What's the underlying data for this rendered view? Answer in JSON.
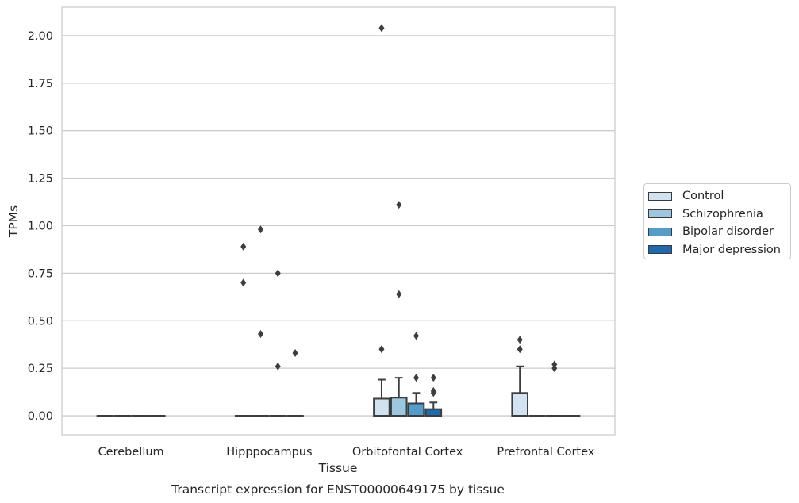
{
  "chart_data": {
    "type": "boxplot",
    "title": "",
    "caption": "Transcript expression for ENST00000649175 by tissue",
    "xlabel": "Tissue",
    "ylabel": "TPMs",
    "ylim": [
      -0.1,
      2.15
    ],
    "yticks": [
      "0.00",
      "0.25",
      "0.50",
      "0.75",
      "1.00",
      "1.25",
      "1.50",
      "1.75",
      "2.00"
    ],
    "grid": "horizontal",
    "legend_position": "right",
    "categories": [
      "Cerebellum",
      "Hipppocampus",
      "Orbitofontal Cortex",
      "Prefrontal Cortex"
    ],
    "series": [
      {
        "name": "Control",
        "color": "#d1e2f2",
        "boxes": [
          {
            "q1": 0,
            "median": 0,
            "q3": 0,
            "whisker_low": 0,
            "whisker_high": 0,
            "outliers": []
          },
          {
            "q1": 0,
            "median": 0,
            "q3": 0,
            "whisker_low": 0,
            "whisker_high": 0,
            "outliers": [
              0.89,
              0.7
            ]
          },
          {
            "q1": 0,
            "median": 0,
            "q3": 0.09,
            "whisker_low": 0,
            "whisker_high": 0.19,
            "outliers": [
              2.04,
              0.35
            ]
          },
          {
            "q1": 0,
            "median": 0,
            "q3": 0.12,
            "whisker_low": 0,
            "whisker_high": 0.26,
            "outliers": [
              0.4,
              0.35
            ]
          }
        ]
      },
      {
        "name": "Schizophrenia",
        "color": "#9ac8e0",
        "boxes": [
          {
            "q1": 0,
            "median": 0,
            "q3": 0,
            "whisker_low": 0,
            "whisker_high": 0,
            "outliers": []
          },
          {
            "q1": 0,
            "median": 0,
            "q3": 0,
            "whisker_low": 0,
            "whisker_high": 0,
            "outliers": [
              0.98,
              0.43
            ]
          },
          {
            "q1": 0,
            "median": 0,
            "q3": 0.095,
            "whisker_low": 0,
            "whisker_high": 0.2,
            "outliers": [
              1.11,
              0.64
            ]
          },
          {
            "q1": 0,
            "median": 0,
            "q3": 0,
            "whisker_low": 0,
            "whisker_high": 0,
            "outliers": []
          }
        ]
      },
      {
        "name": "Bipolar disorder",
        "color": "#529dcc",
        "boxes": [
          {
            "q1": 0,
            "median": 0,
            "q3": 0,
            "whisker_low": 0,
            "whisker_high": 0,
            "outliers": []
          },
          {
            "q1": 0,
            "median": 0,
            "q3": 0,
            "whisker_low": 0,
            "whisker_high": 0,
            "outliers": [
              0.75,
              0.26
            ]
          },
          {
            "q1": 0,
            "median": 0,
            "q3": 0.065,
            "whisker_low": 0,
            "whisker_high": 0.12,
            "outliers": [
              0.42,
              0.2
            ]
          },
          {
            "q1": 0,
            "median": 0,
            "q3": 0,
            "whisker_low": 0,
            "whisker_high": 0,
            "outliers": [
              0.27,
              0.25
            ]
          }
        ]
      },
      {
        "name": "Major depression",
        "color": "#1c6aaf",
        "boxes": [
          {
            "q1": 0,
            "median": 0,
            "q3": 0,
            "whisker_low": 0,
            "whisker_high": 0,
            "outliers": []
          },
          {
            "q1": 0,
            "median": 0,
            "q3": 0,
            "whisker_low": 0,
            "whisker_high": 0,
            "outliers": [
              0.33
            ]
          },
          {
            "q1": 0,
            "median": 0,
            "q3": 0.035,
            "whisker_low": 0,
            "whisker_high": 0.07,
            "outliers": [
              0.2,
              0.13,
              0.12
            ]
          },
          {
            "q1": 0,
            "median": 0,
            "q3": 0,
            "whisker_low": 0,
            "whisker_high": 0,
            "outliers": []
          }
        ]
      }
    ]
  }
}
